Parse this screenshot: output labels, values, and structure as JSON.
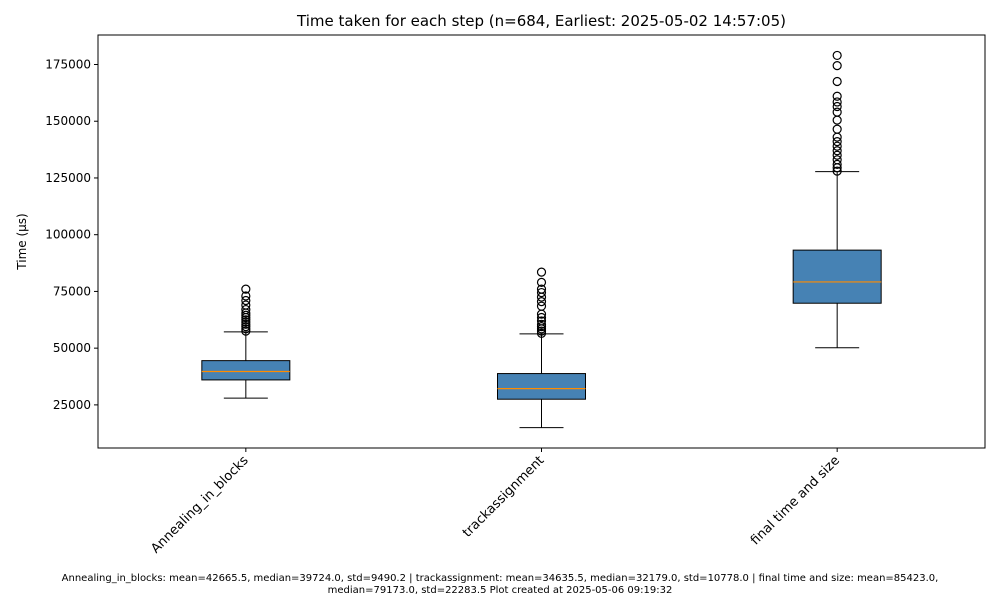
{
  "chart_data": {
    "type": "box",
    "title": "Time taken for each step (n=684, Earliest: 2025-05-02 14:57:05)",
    "xlabel": "",
    "ylabel": "Time (µs)",
    "ylim": [
      6000,
      188000
    ],
    "yticks": [
      25000,
      50000,
      75000,
      100000,
      125000,
      150000,
      175000
    ],
    "ytick_labels": [
      "25000",
      "50000",
      "75000",
      "100000",
      "125000",
      "150000",
      "175000"
    ],
    "grid": false,
    "legend": "none",
    "categories": [
      "Annealing_in_blocks",
      "trackassignment",
      "final time and size"
    ],
    "boxes": [
      {
        "name": "Annealing_in_blocks",
        "whisker_low": 28000,
        "q1": 36000,
        "median": 39724,
        "q3": 44500,
        "whisker_high": 57200,
        "outliers": [
          57500,
          58500,
          59500,
          60500,
          61500,
          62500,
          63500,
          64500,
          65500,
          67000,
          69000,
          71000,
          73000,
          76000
        ]
      },
      {
        "name": "trackassignment",
        "whisker_low": 15000,
        "q1": 27500,
        "median": 32179,
        "q3": 38800,
        "whisker_high": 56300,
        "outliers": [
          56500,
          57500,
          58500,
          59500,
          60500,
          62000,
          63500,
          65000,
          68500,
          70500,
          72500,
          74500,
          76000,
          79000,
          83500
        ]
      },
      {
        "name": "final time and size",
        "whisker_low": 50200,
        "q1": 69800,
        "median": 79173,
        "q3": 93200,
        "whisker_high": 127800,
        "outliers": [
          128000,
          129500,
          131000,
          133000,
          135000,
          137000,
          139000,
          141000,
          143000,
          146500,
          150500,
          154000,
          156500,
          158500,
          161000,
          167500,
          174500,
          179000
        ]
      }
    ],
    "colors": {
      "box_fill": "#4682b4",
      "median": "#ff8c00",
      "line": "#000000",
      "outlier": "#000000"
    }
  },
  "footer": {
    "line1": "Annealing_in_blocks: mean=42665.5, median=39724.0, std=9490.2 | trackassignment: mean=34635.5, median=32179.0, std=10778.0 | final time and size: mean=85423.0,",
    "line2": "median=79173.0, std=22283.5    Plot created at 2025-05-06 09:19:32"
  }
}
